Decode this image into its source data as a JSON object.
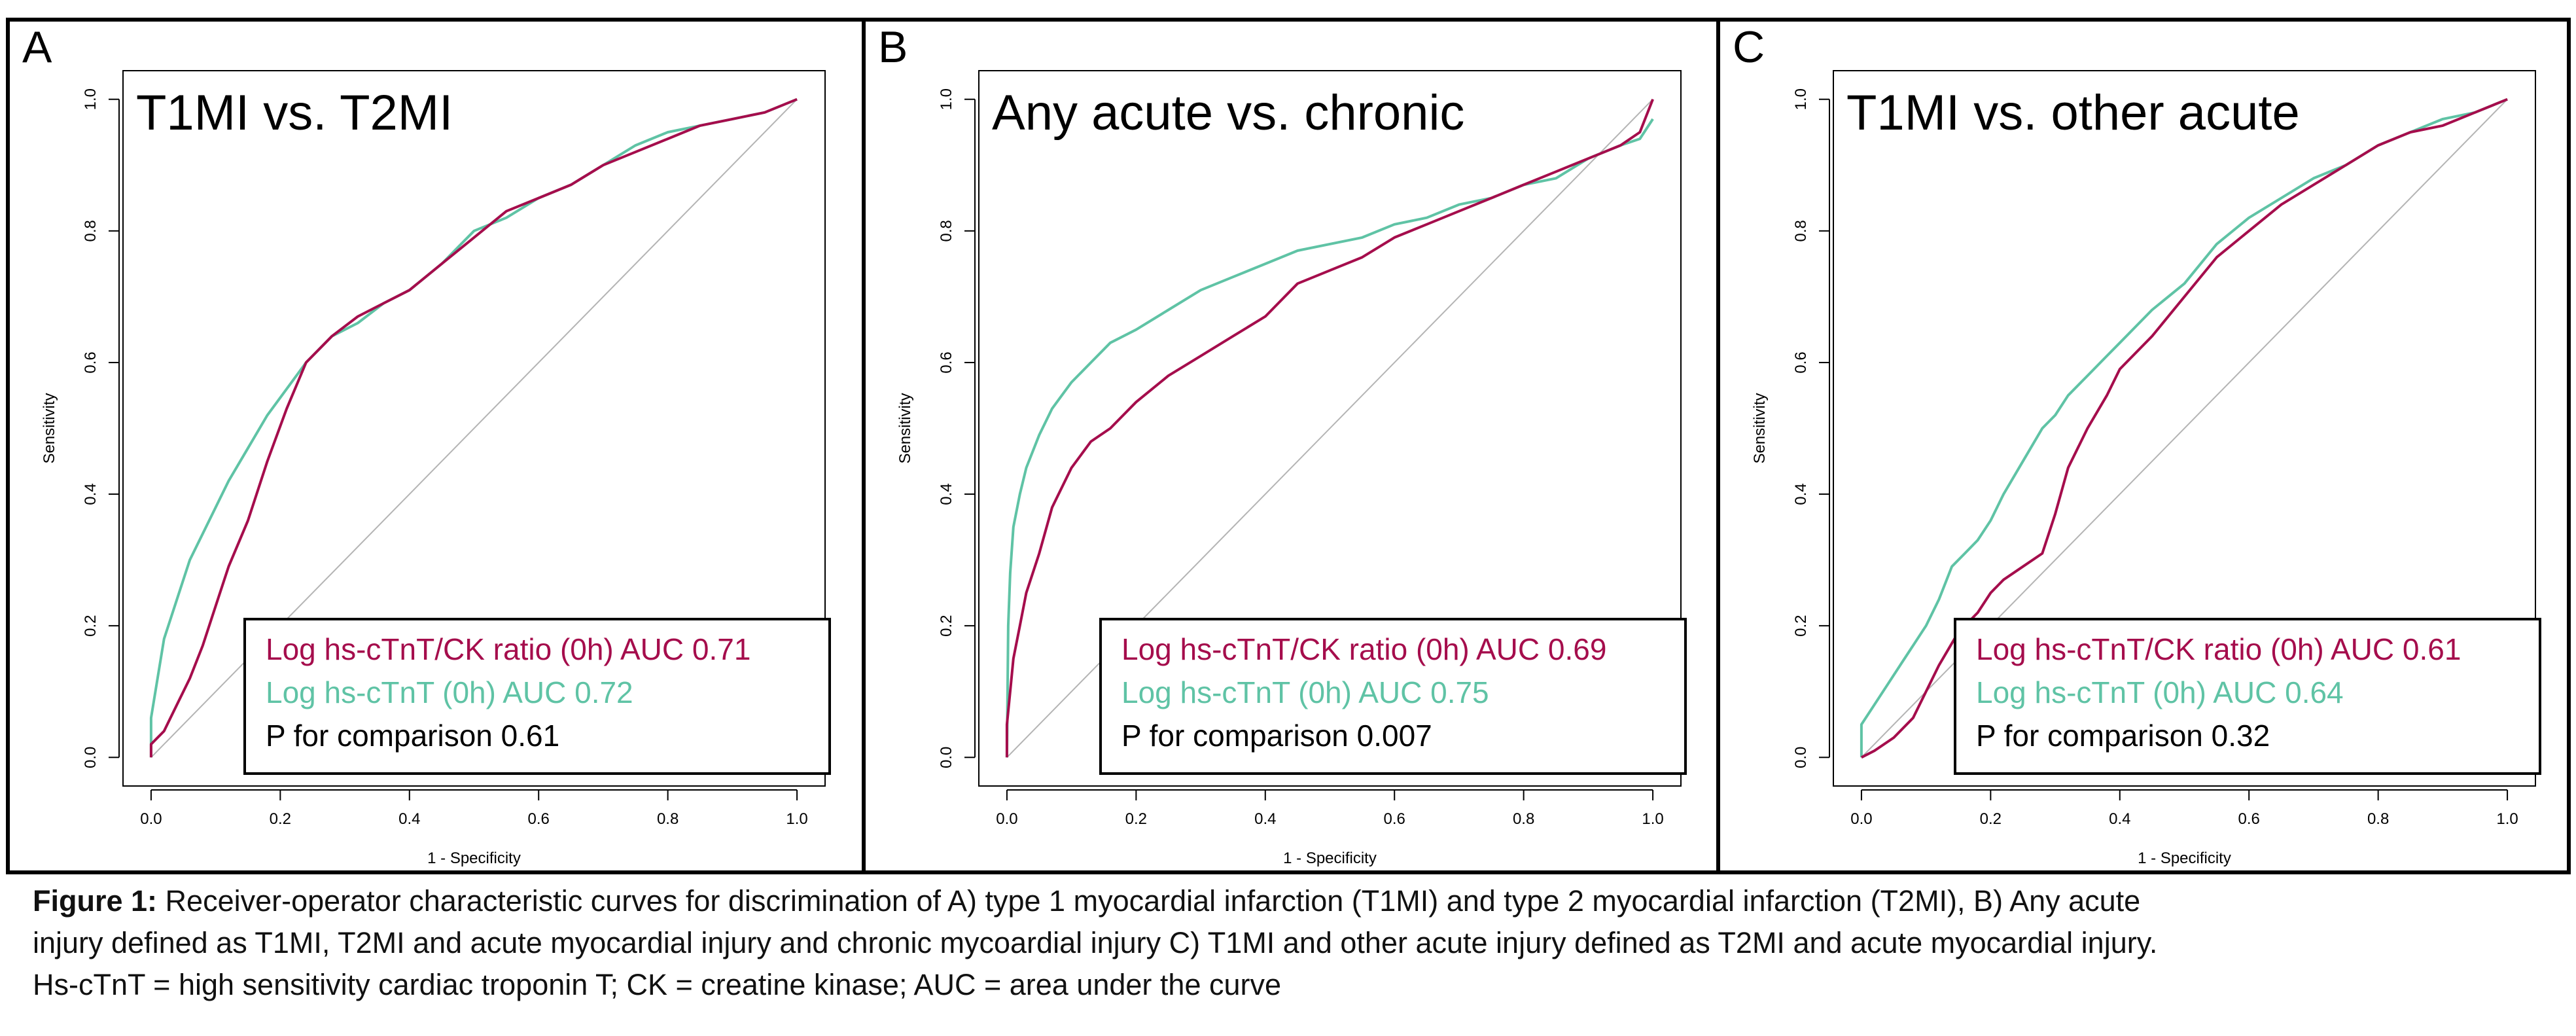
{
  "caption": {
    "label": "Figure 1:",
    "line1": "Receiver-operator characteristic curves for discrimination of A) type 1 myocardial infarction (T1MI) and type 2 myocardial infarction (T2MI), B) Any acute",
    "line2": "injury defined as T1MI, T2MI and acute myocardial injury and chronic mycoardial injury C) T1MI and other acute injury defined as T2MI and acute myocardial injury.",
    "line3": "Hs-cTnT = high sensitivity cardiac troponin T; CK = creatine kinase; AUC = area under the curve"
  },
  "colors": {
    "ratio": "#a50d4c",
    "tnt": "#5fc3a5",
    "reference": "#b4b4b4",
    "frame": "#000000"
  },
  "chart_data": [
    {
      "type": "line",
      "panel": "A",
      "title": "T1MI vs. T2MI",
      "xlabel": "1 - Specificity",
      "ylabel": "Sensitivity",
      "xlim": [
        0,
        1
      ],
      "ylim": [
        0,
        1
      ],
      "xticks": [
        "0.0",
        "0.2",
        "0.4",
        "0.6",
        "0.8",
        "1.0"
      ],
      "yticks": [
        "0.0",
        "0.2",
        "0.4",
        "0.6",
        "0.8",
        "1.0"
      ],
      "legend": [
        "Log hs-cTnT/CK ratio (0h) AUC 0.71",
        "Log hs-cTnT (0h) AUC 0.72",
        "P for comparison 0.61"
      ],
      "legend_position": "bottom-right",
      "series": [
        {
          "name": "Log hs-cTnT/CK ratio (0h) AUC 0.71",
          "color": "#a50d4c",
          "x": [
            0,
            0,
            0.02,
            0.04,
            0.06,
            0.08,
            0.1,
            0.12,
            0.15,
            0.18,
            0.21,
            0.24,
            0.28,
            0.32,
            0.36,
            0.4,
            0.45,
            0.5,
            0.55,
            0.6,
            0.65,
            0.7,
            0.75,
            0.8,
            0.85,
            0.9,
            0.95,
            1
          ],
          "y": [
            0,
            0.02,
            0.04,
            0.08,
            0.12,
            0.17,
            0.23,
            0.29,
            0.36,
            0.45,
            0.53,
            0.6,
            0.64,
            0.67,
            0.69,
            0.71,
            0.75,
            0.79,
            0.83,
            0.85,
            0.87,
            0.9,
            0.92,
            0.94,
            0.96,
            0.97,
            0.98,
            1
          ]
        },
        {
          "name": "Log hs-cTnT (0h) AUC 0.72",
          "color": "#5fc3a5",
          "x": [
            0,
            0,
            0.01,
            0.02,
            0.04,
            0.06,
            0.08,
            0.1,
            0.12,
            0.15,
            0.18,
            0.21,
            0.24,
            0.28,
            0.32,
            0.36,
            0.4,
            0.45,
            0.5,
            0.55,
            0.6,
            0.65,
            0.7,
            0.75,
            0.8,
            0.85,
            0.9,
            0.95,
            1
          ],
          "y": [
            0,
            0.06,
            0.12,
            0.18,
            0.24,
            0.3,
            0.34,
            0.38,
            0.42,
            0.47,
            0.52,
            0.56,
            0.6,
            0.64,
            0.66,
            0.69,
            0.71,
            0.75,
            0.8,
            0.82,
            0.85,
            0.87,
            0.9,
            0.93,
            0.95,
            0.96,
            0.97,
            0.98,
            1
          ]
        }
      ]
    },
    {
      "type": "line",
      "panel": "B",
      "title": "Any acute vs. chronic",
      "xlabel": "1 - Specificity",
      "ylabel": "Sensitivity",
      "xlim": [
        0,
        1
      ],
      "ylim": [
        0,
        1
      ],
      "xticks": [
        "0.0",
        "0.2",
        "0.4",
        "0.6",
        "0.8",
        "1.0"
      ],
      "yticks": [
        "0.0",
        "0.2",
        "0.4",
        "0.6",
        "0.8",
        "1.0"
      ],
      "legend": [
        "Log hs-cTnT/CK ratio (0h) AUC 0.69",
        "Log hs-cTnT (0h) AUC 0.75",
        "P for comparison 0.007"
      ],
      "legend_position": "bottom-right",
      "series": [
        {
          "name": "Log hs-cTnT/CK ratio (0h) AUC 0.69",
          "color": "#a50d4c",
          "x": [
            0,
            0,
            0.005,
            0.01,
            0.02,
            0.03,
            0.05,
            0.07,
            0.1,
            0.13,
            0.16,
            0.2,
            0.25,
            0.3,
            0.35,
            0.4,
            0.45,
            0.5,
            0.55,
            0.6,
            0.65,
            0.7,
            0.75,
            0.8,
            0.85,
            0.9,
            0.95,
            0.98,
            1
          ],
          "y": [
            0,
            0.05,
            0.1,
            0.15,
            0.2,
            0.25,
            0.31,
            0.38,
            0.44,
            0.48,
            0.5,
            0.54,
            0.58,
            0.61,
            0.64,
            0.67,
            0.72,
            0.74,
            0.76,
            0.79,
            0.81,
            0.83,
            0.85,
            0.87,
            0.89,
            0.91,
            0.93,
            0.95,
            1
          ]
        },
        {
          "name": "Log hs-cTnT (0h) AUC 0.75",
          "color": "#5fc3a5",
          "x": [
            0,
            0.002,
            0.005,
            0.01,
            0.02,
            0.03,
            0.05,
            0.07,
            0.1,
            0.13,
            0.16,
            0.2,
            0.25,
            0.3,
            0.35,
            0.4,
            0.45,
            0.5,
            0.55,
            0.6,
            0.65,
            0.7,
            0.75,
            0.8,
            0.85,
            0.9,
            0.95,
            0.98,
            1
          ],
          "y": [
            0,
            0.2,
            0.28,
            0.35,
            0.4,
            0.44,
            0.49,
            0.53,
            0.57,
            0.6,
            0.63,
            0.65,
            0.68,
            0.71,
            0.73,
            0.75,
            0.77,
            0.78,
            0.79,
            0.81,
            0.82,
            0.84,
            0.85,
            0.87,
            0.88,
            0.91,
            0.93,
            0.94,
            0.97
          ]
        }
      ]
    },
    {
      "type": "line",
      "panel": "C",
      "title": "T1MI vs. other acute",
      "xlabel": "1 - Specificity",
      "ylabel": "Sensitivity",
      "xlim": [
        0,
        1
      ],
      "ylim": [
        0,
        1
      ],
      "xticks": [
        "0.0",
        "0.2",
        "0.4",
        "0.6",
        "0.8",
        "1.0"
      ],
      "yticks": [
        "0.0",
        "0.2",
        "0.4",
        "0.6",
        "0.8",
        "1.0"
      ],
      "legend": [
        "Log hs-cTnT/CK ratio (0h) AUC 0.61",
        "Log hs-cTnT (0h) AUC 0.64",
        "P for comparison 0.32"
      ],
      "legend_position": "bottom-right",
      "series": [
        {
          "name": "Log hs-cTnT/CK ratio (0h) AUC 0.61",
          "color": "#a50d4c",
          "x": [
            0,
            0.02,
            0.05,
            0.08,
            0.1,
            0.12,
            0.15,
            0.18,
            0.2,
            0.22,
            0.25,
            0.28,
            0.3,
            0.32,
            0.35,
            0.38,
            0.4,
            0.45,
            0.5,
            0.55,
            0.6,
            0.65,
            0.7,
            0.75,
            0.8,
            0.85,
            0.9,
            0.95,
            1
          ],
          "y": [
            0,
            0.01,
            0.03,
            0.06,
            0.1,
            0.14,
            0.19,
            0.22,
            0.25,
            0.27,
            0.29,
            0.31,
            0.37,
            0.44,
            0.5,
            0.55,
            0.59,
            0.64,
            0.7,
            0.76,
            0.8,
            0.84,
            0.87,
            0.9,
            0.93,
            0.95,
            0.96,
            0.98,
            1
          ]
        },
        {
          "name": "Log hs-cTnT (0h) AUC 0.64",
          "color": "#5fc3a5",
          "x": [
            0,
            0,
            0.02,
            0.04,
            0.06,
            0.08,
            0.1,
            0.12,
            0.14,
            0.16,
            0.18,
            0.2,
            0.22,
            0.25,
            0.28,
            0.3,
            0.32,
            0.35,
            0.38,
            0.4,
            0.45,
            0.5,
            0.55,
            0.6,
            0.65,
            0.7,
            0.75,
            0.8,
            0.85,
            0.9,
            0.95,
            1
          ],
          "y": [
            0,
            0.05,
            0.08,
            0.11,
            0.14,
            0.17,
            0.2,
            0.24,
            0.29,
            0.31,
            0.33,
            0.36,
            0.4,
            0.45,
            0.5,
            0.52,
            0.55,
            0.58,
            0.61,
            0.63,
            0.68,
            0.72,
            0.78,
            0.82,
            0.85,
            0.88,
            0.9,
            0.93,
            0.95,
            0.97,
            0.98,
            1
          ]
        }
      ]
    }
  ]
}
